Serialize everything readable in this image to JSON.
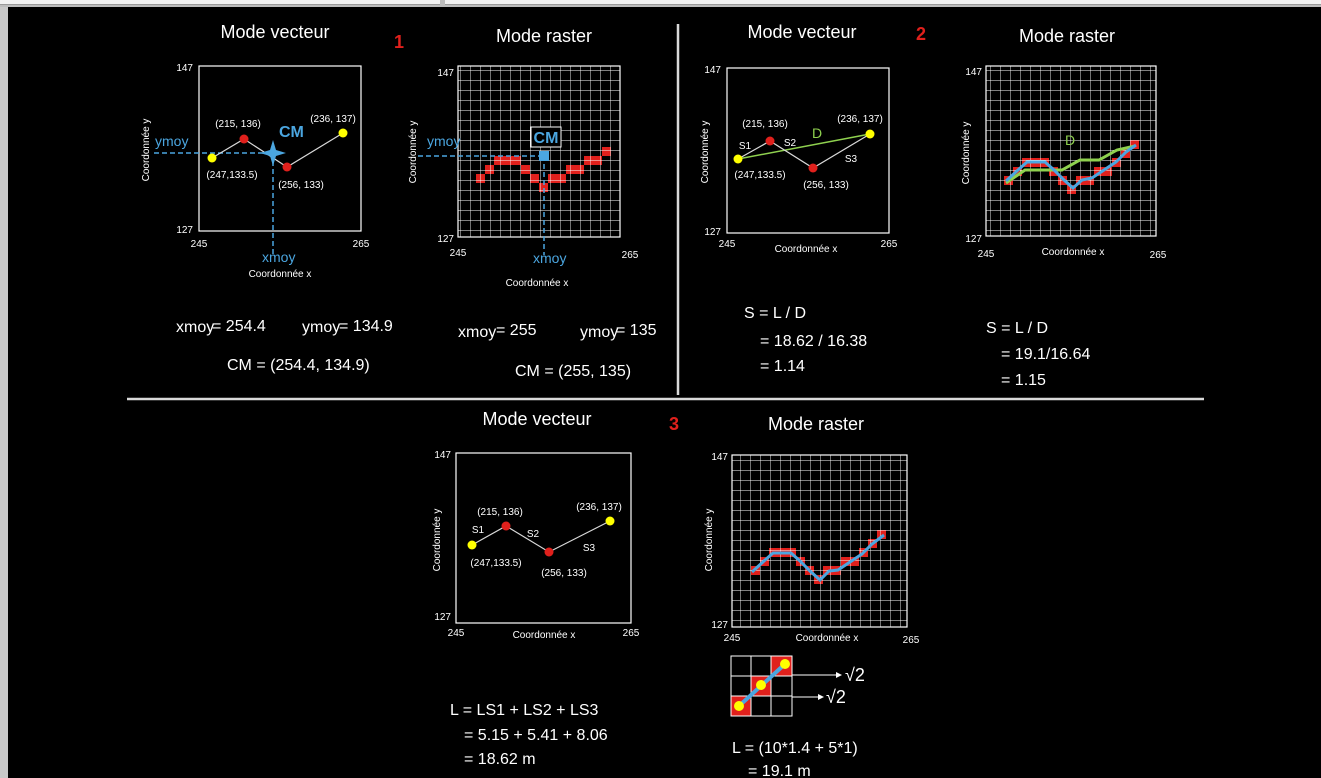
{
  "sections": [
    {
      "number": "1"
    },
    {
      "number": "2"
    },
    {
      "number": "3"
    }
  ],
  "titles": {
    "vector": "Mode vecteur",
    "raster": "Mode raster"
  },
  "axes": {
    "y_max": "147",
    "y_min": "127",
    "x_min": "245",
    "x_max": "265",
    "xlabel": "Coordonnée x",
    "ylabel": "Coordonnée y"
  },
  "points": {
    "p1": "(247,133.5)",
    "p2": "(215, 136)",
    "p3": "(256, 133)",
    "p4": "(236, 137)"
  },
  "segments": {
    "s1": "S1",
    "s2": "S2",
    "s3": "S3",
    "d": "D"
  },
  "section1": {
    "cm_label": "CM",
    "ymoy": "ymoy",
    "xmoy": "xmoy",
    "vector_xmoy_value": "= 254.4",
    "vector_ymoy_value": "= 134.9",
    "vector_cm": "CM = (254.4, 134.9)",
    "raster_xmoy_value": "= 255",
    "raster_ymoy_value": "= 135",
    "raster_cm": "CM = (255, 135)"
  },
  "section2": {
    "vector_formula": [
      "S = L / D",
      "= 18.62 / 16.38",
      "= 1.14"
    ],
    "raster_formula": [
      "S = L / D",
      "= 19.1/16.64",
      "= 1.15"
    ]
  },
  "section3": {
    "vector_formula": [
      "L = LS1 + LS2 + LS3",
      "= 5.15 + 5.41 + 8.06",
      "= 18.62 m"
    ],
    "raster_formula": [
      "L = (10*1.4 + 5*1)",
      "= 19.1 m"
    ],
    "sqrt_label": "√2"
  },
  "colors": {
    "background": "#000000",
    "section_number": "#e0201c",
    "cm_blue": "#4ba6e0",
    "yellow_point": "#ffff00",
    "red_point": "#e0201c",
    "raster_cell": "#e0201c",
    "line_d": "#8fd14f"
  }
}
